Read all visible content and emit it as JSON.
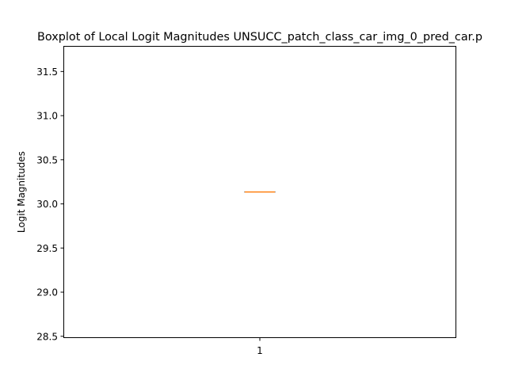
{
  "chart_data": {
    "type": "boxplot",
    "title": "Boxplot of Local Logit Magnitudes UNSUCC_patch_class_car_img_0_pred_car.p",
    "xlabel": "",
    "ylabel": "Logit Magnitudes",
    "ylim": [
      28.48,
      31.79
    ],
    "yticks": [
      28.5,
      29.0,
      29.5,
      30.0,
      30.5,
      31.0,
      31.5
    ],
    "ytick_labels": [
      "28.5",
      "29.0",
      "29.5",
      "30.0",
      "30.5",
      "31.0",
      "31.5"
    ],
    "categories": [
      "1"
    ],
    "boxes": [
      {
        "label": "1",
        "min": 30.135,
        "q1": 30.135,
        "median": 30.135,
        "q3": 30.135,
        "max": 30.135
      }
    ],
    "grid": false,
    "colors": {
      "box": "#000000",
      "median": "#ff7f0e"
    }
  }
}
